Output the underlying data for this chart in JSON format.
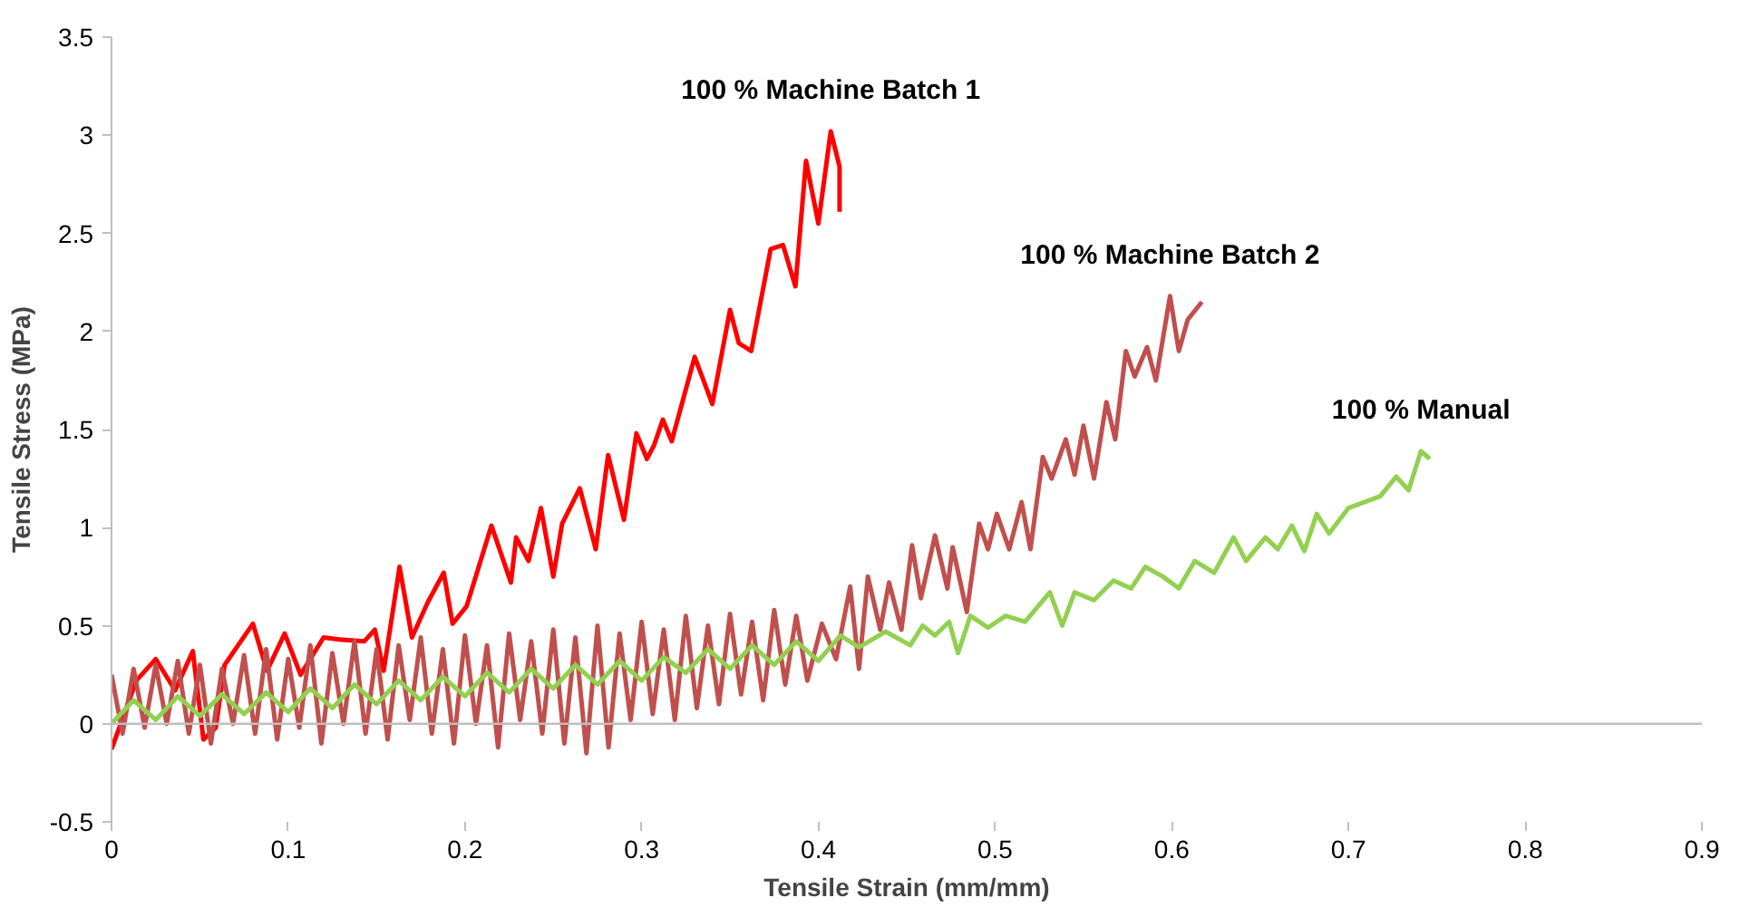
{
  "chart_data": {
    "type": "line",
    "xlabel": "Tensile Strain (mm/mm)",
    "ylabel": "Tensile Stress (MPa)",
    "xlim": [
      0,
      0.9
    ],
    "ylim": [
      -0.5,
      3.5
    ],
    "xticks": [
      0,
      0.1,
      0.2,
      0.3,
      0.4,
      0.5,
      0.6,
      0.7,
      0.8,
      0.9
    ],
    "yticks": [
      -0.5,
      0,
      0.5,
      1,
      1.5,
      2,
      2.5,
      3,
      3.5
    ],
    "grid": false,
    "ref_lines": [
      {
        "axis": "y",
        "value": 0,
        "color": "#bfbfbf"
      }
    ],
    "legend": false,
    "marker": "none",
    "line_style": "solid",
    "series": [
      {
        "name": "100 % Machine Batch 1",
        "color": "#ff0000",
        "x": [
          0,
          0.014,
          0.025,
          0.036,
          0.046,
          0.052,
          0.059,
          0.064,
          0.08,
          0.088,
          0.098,
          0.107,
          0.12,
          0.129,
          0.143,
          0.149,
          0.154,
          0.163,
          0.17,
          0.179,
          0.188,
          0.193,
          0.201,
          0.215,
          0.226,
          0.229,
          0.236,
          0.243,
          0.25,
          0.255,
          0.265,
          0.274,
          0.281,
          0.29,
          0.297,
          0.303,
          0.307,
          0.312,
          0.317,
          0.33,
          0.34,
          0.35,
          0.355,
          0.362,
          0.373,
          0.38,
          0.387,
          0.393,
          0.4,
          0.407,
          0.412,
          0.412
        ],
        "values": [
          -0.13,
          0.22,
          0.33,
          0.17,
          0.37,
          -0.08,
          -0.02,
          0.3,
          0.51,
          0.27,
          0.46,
          0.25,
          0.44,
          0.43,
          0.42,
          0.48,
          0.27,
          0.8,
          0.44,
          0.62,
          0.77,
          0.51,
          0.6,
          1.01,
          0.72,
          0.95,
          0.83,
          1.1,
          0.75,
          1.02,
          1.2,
          0.89,
          1.37,
          1.04,
          1.48,
          1.35,
          1.42,
          1.55,
          1.44,
          1.87,
          1.63,
          2.11,
          1.94,
          1.9,
          2.42,
          2.44,
          2.23,
          2.87,
          2.55,
          3.02,
          2.84,
          2.61
        ]
      },
      {
        "name": "100 % Machine Batch 2",
        "color": "#c0504d",
        "x": [
          0,
          0.00625,
          0.0125,
          0.01875,
          0.025,
          0.03125,
          0.0375,
          0.04375,
          0.05,
          0.05625,
          0.0625,
          0.06875,
          0.075,
          0.08125,
          0.0875,
          0.09375,
          0.1,
          0.10625,
          0.1125,
          0.11875,
          0.125,
          0.13125,
          0.1375,
          0.14375,
          0.15,
          0.15625,
          0.1625,
          0.16875,
          0.175,
          0.18125,
          0.1875,
          0.19375,
          0.2,
          0.20625,
          0.2125,
          0.21875,
          0.225,
          0.23125,
          0.2375,
          0.24375,
          0.25,
          0.25625,
          0.2625,
          0.26875,
          0.275,
          0.28125,
          0.2875,
          0.29375,
          0.3,
          0.30625,
          0.3125,
          0.31875,
          0.325,
          0.33125,
          0.3375,
          0.34375,
          0.35,
          0.35625,
          0.3625,
          0.36875,
          0.375,
          0.38125,
          0.3875,
          0.39375,
          0.402,
          0.41,
          0.418,
          0.423,
          0.428,
          0.435,
          0.44,
          0.447,
          0.453,
          0.458,
          0.466,
          0.473,
          0.476,
          0.484,
          0.491,
          0.496,
          0.501,
          0.508,
          0.515,
          0.52,
          0.527,
          0.532,
          0.54,
          0.545,
          0.55,
          0.556,
          0.563,
          0.568,
          0.574,
          0.579,
          0.586,
          0.591,
          0.599,
          0.604,
          0.609,
          0.617
        ],
        "values": [
          0.25,
          -0.05,
          0.28,
          -0.02,
          0.3,
          0.0,
          0.32,
          -0.05,
          0.3,
          -0.1,
          0.28,
          0.0,
          0.35,
          -0.05,
          0.38,
          -0.08,
          0.33,
          -0.02,
          0.4,
          -0.1,
          0.36,
          0.0,
          0.42,
          -0.05,
          0.38,
          -0.08,
          0.4,
          0.02,
          0.44,
          -0.05,
          0.38,
          -0.1,
          0.45,
          0.0,
          0.4,
          -0.12,
          0.46,
          0.02,
          0.42,
          -0.05,
          0.48,
          -0.1,
          0.44,
          -0.15,
          0.5,
          -0.12,
          0.46,
          0.02,
          0.52,
          0.05,
          0.48,
          0.02,
          0.55,
          0.08,
          0.5,
          0.1,
          0.56,
          0.15,
          0.52,
          0.12,
          0.58,
          0.2,
          0.55,
          0.22,
          0.51,
          0.33,
          0.7,
          0.28,
          0.75,
          0.48,
          0.72,
          0.48,
          0.91,
          0.64,
          0.96,
          0.69,
          0.9,
          0.57,
          1.02,
          0.89,
          1.07,
          0.89,
          1.13,
          0.89,
          1.36,
          1.25,
          1.45,
          1.27,
          1.52,
          1.25,
          1.64,
          1.45,
          1.9,
          1.77,
          1.92,
          1.75,
          2.18,
          1.9,
          2.06,
          2.15
        ]
      },
      {
        "name": "100 % Manual",
        "color": "#92d050",
        "x": [
          0,
          0.0125,
          0.025,
          0.0375,
          0.05,
          0.0625,
          0.075,
          0.0875,
          0.1,
          0.1125,
          0.125,
          0.1375,
          0.15,
          0.1625,
          0.175,
          0.1875,
          0.2,
          0.2125,
          0.225,
          0.2375,
          0.25,
          0.2625,
          0.275,
          0.2875,
          0.3,
          0.3125,
          0.325,
          0.3375,
          0.35,
          0.3625,
          0.375,
          0.3875,
          0.4,
          0.4125,
          0.423,
          0.438,
          0.452,
          0.459,
          0.466,
          0.474,
          0.479,
          0.486,
          0.496,
          0.506,
          0.517,
          0.531,
          0.538,
          0.545,
          0.556,
          0.567,
          0.577,
          0.585,
          0.595,
          0.604,
          0.613,
          0.624,
          0.635,
          0.642,
          0.653,
          0.66,
          0.668,
          0.675,
          0.682,
          0.689,
          0.7,
          0.709,
          0.718,
          0.727,
          0.734,
          0.741,
          0.746
        ],
        "values": [
          0.0,
          0.12,
          0.02,
          0.14,
          0.04,
          0.15,
          0.05,
          0.16,
          0.06,
          0.18,
          0.08,
          0.2,
          0.1,
          0.22,
          0.12,
          0.24,
          0.14,
          0.26,
          0.16,
          0.28,
          0.18,
          0.3,
          0.2,
          0.32,
          0.22,
          0.34,
          0.26,
          0.38,
          0.28,
          0.4,
          0.3,
          0.42,
          0.32,
          0.45,
          0.39,
          0.47,
          0.4,
          0.5,
          0.45,
          0.52,
          0.36,
          0.55,
          0.49,
          0.55,
          0.52,
          0.67,
          0.5,
          0.67,
          0.63,
          0.73,
          0.69,
          0.8,
          0.75,
          0.69,
          0.83,
          0.77,
          0.95,
          0.83,
          0.95,
          0.89,
          1.01,
          0.88,
          1.07,
          0.97,
          1.1,
          1.13,
          1.16,
          1.26,
          1.19,
          1.39,
          1.35
        ]
      }
    ]
  }
}
